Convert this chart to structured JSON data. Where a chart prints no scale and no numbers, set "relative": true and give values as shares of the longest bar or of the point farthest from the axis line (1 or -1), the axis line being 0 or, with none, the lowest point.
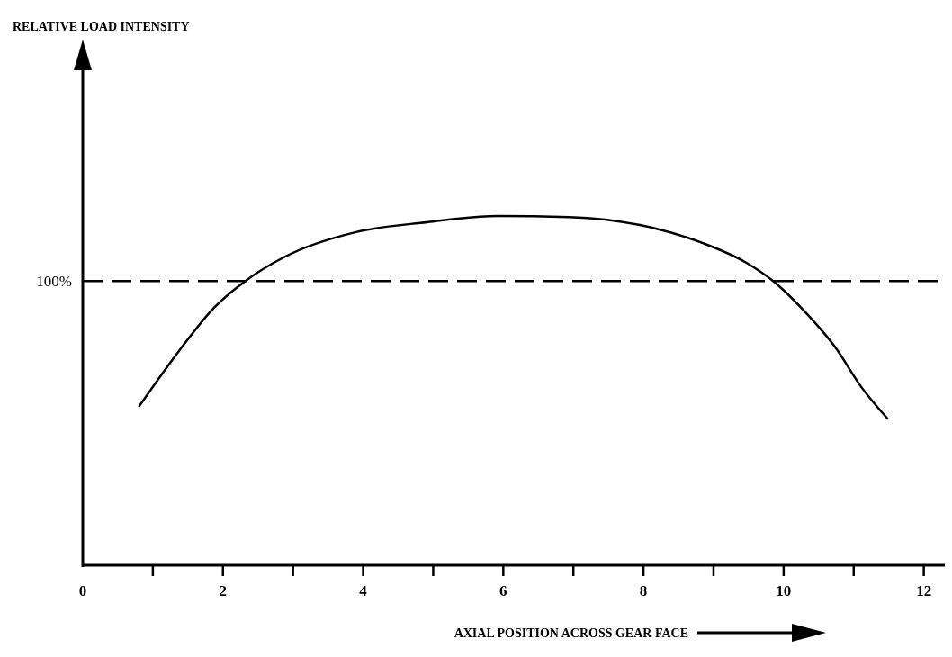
{
  "chart_data": {
    "type": "line",
    "relative": true,
    "title": "RELATIVE LOAD INTENSITY",
    "xlabel": "AXIAL POSITION ACROSS GEAR FACE",
    "xlim": [
      0,
      12.3
    ],
    "xticks": [
      0,
      {
        "value": 1,
        "label": null
      },
      2,
      {
        "value": 3,
        "label": null
      },
      4,
      {
        "value": 5,
        "label": null
      },
      6,
      {
        "value": 7,
        "label": null
      },
      8,
      {
        "value": 9,
        "label": null
      },
      10,
      {
        "value": 11,
        "label": null
      },
      12
    ],
    "series": [
      {
        "color": "#000000",
        "line_style": "solid",
        "x": [
          0.8,
          1.37,
          1.87,
          2.32,
          2.89,
          3.9,
          4.91,
          5.92,
          6.94,
          7.95,
          8.84,
          9.47,
          9.85,
          10.35,
          10.73,
          11.11,
          11.49
        ],
        "values": [
          0.454,
          0.613,
          0.737,
          0.814,
          0.884,
          0.954,
          0.982,
          1,
          0.997,
          0.974,
          0.923,
          0.866,
          0.814,
          0.716,
          0.626,
          0.51,
          0.418
        ]
      }
    ],
    "ref_lines": [
      {
        "axis": "y",
        "value": 0.814,
        "color": "#000000",
        "line_style": "dashed"
      }
    ],
    "annotations": [
      "100%"
    ]
  }
}
